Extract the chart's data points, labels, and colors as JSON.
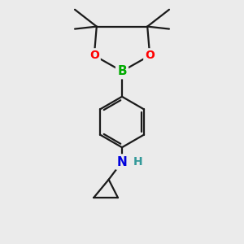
{
  "background_color": "#ebebeb",
  "bond_color": "#1a1a1a",
  "B_color": "#00aa00",
  "O_color": "#ff0000",
  "N_color": "#0000dd",
  "H_color": "#339999",
  "line_width": 1.6,
  "figsize": [
    3.0,
    3.0
  ],
  "dpi": 100,
  "xlim": [
    0,
    10
  ],
  "ylim": [
    0,
    10
  ]
}
